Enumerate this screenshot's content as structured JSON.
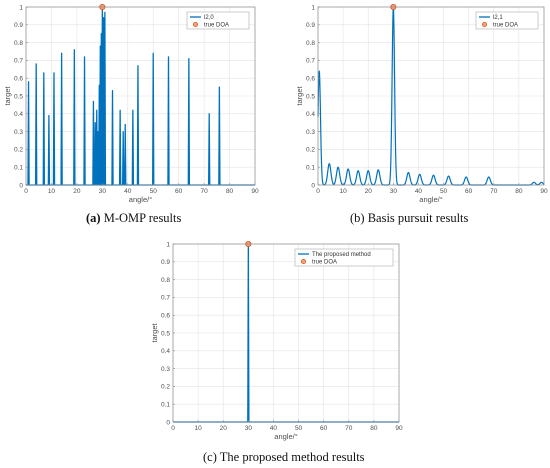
{
  "colors": {
    "series": "#0072bd",
    "marker_edge": "#d95319",
    "marker_fill": "#f3a27a",
    "grid": "#e3e3e3",
    "axis": "#8a8a8a"
  },
  "captions": [
    {
      "tag": "(a)",
      "text": " M-OMP results"
    },
    {
      "tag": "(b)",
      "text": " Basis pursuit results"
    },
    {
      "tag": "(c)",
      "text": " The proposed method results"
    }
  ],
  "chart_data": [
    {
      "type": "line",
      "xlabel": "angle/°",
      "ylabel": "target",
      "xlim": [
        0,
        90
      ],
      "ylim": [
        0,
        1
      ],
      "xticks": [
        0,
        10,
        20,
        30,
        40,
        50,
        60,
        70,
        80,
        90
      ],
      "yticks": [
        0,
        0.1,
        0.2,
        0.3,
        0.4,
        0.5,
        0.6,
        0.7,
        0.8,
        0.9,
        1
      ],
      "grid": true,
      "legend_position": "top-right",
      "legend": [
        "l2,0",
        "true DOA"
      ],
      "true_doa": {
        "x": 30,
        "y": 1
      },
      "series": [
        {
          "name": "l2,0",
          "peaks": [
            {
              "x": 1,
              "y": 0.58
            },
            {
              "x": 4,
              "y": 0.68
            },
            {
              "x": 7,
              "y": 0.63
            },
            {
              "x": 9,
              "y": 0.39
            },
            {
              "x": 11,
              "y": 0.63
            },
            {
              "x": 14,
              "y": 0.74
            },
            {
              "x": 19,
              "y": 0.76
            },
            {
              "x": 23,
              "y": 0.72
            },
            {
              "x": 26.5,
              "y": 0.47
            },
            {
              "x": 27.2,
              "y": 0.35
            },
            {
              "x": 27.8,
              "y": 0.42
            },
            {
              "x": 28.3,
              "y": 0.3
            },
            {
              "x": 28.8,
              "y": 0.56
            },
            {
              "x": 29.2,
              "y": 0.78
            },
            {
              "x": 29.6,
              "y": 0.85
            },
            {
              "x": 30,
              "y": 1
            },
            {
              "x": 30.5,
              "y": 0.94
            },
            {
              "x": 31,
              "y": 0.97
            },
            {
              "x": 34,
              "y": 0.53
            },
            {
              "x": 37,
              "y": 0.42
            },
            {
              "x": 38.2,
              "y": 0.3
            },
            {
              "x": 39,
              "y": 0.34
            },
            {
              "x": 42,
              "y": 0.42
            },
            {
              "x": 44,
              "y": 0.67
            },
            {
              "x": 50,
              "y": 0.74
            },
            {
              "x": 56,
              "y": 0.72
            },
            {
              "x": 64,
              "y": 0.71
            },
            {
              "x": 72,
              "y": 0.4
            },
            {
              "x": 76,
              "y": 0.55
            }
          ]
        }
      ]
    },
    {
      "type": "line",
      "xlabel": "angle/°",
      "ylabel": "target",
      "xlim": [
        0,
        90
      ],
      "ylim": [
        0,
        1
      ],
      "xticks": [
        0,
        10,
        20,
        30,
        40,
        50,
        60,
        70,
        80,
        90
      ],
      "yticks": [
        0,
        0.1,
        0.2,
        0.3,
        0.4,
        0.5,
        0.6,
        0.7,
        0.8,
        0.9,
        1
      ],
      "grid": true,
      "legend_position": "top-right",
      "legend": [
        "l2,1",
        "true DOA"
      ],
      "true_doa": {
        "x": 30,
        "y": 1
      },
      "series": [
        {
          "name": "l2,1",
          "peaks": [
            {
              "x": 0.5,
              "y": 0.64
            },
            {
              "x": 4.5,
              "y": 0.12
            },
            {
              "x": 8,
              "y": 0.1
            },
            {
              "x": 12,
              "y": 0.09
            },
            {
              "x": 16,
              "y": 0.08
            },
            {
              "x": 20,
              "y": 0.08
            },
            {
              "x": 24,
              "y": 0.085
            },
            {
              "x": 30,
              "y": 1
            },
            {
              "x": 36,
              "y": 0.07
            },
            {
              "x": 40.5,
              "y": 0.06
            },
            {
              "x": 46,
              "y": 0.055
            },
            {
              "x": 52,
              "y": 0.05
            },
            {
              "x": 59,
              "y": 0.045
            },
            {
              "x": 68,
              "y": 0.045
            },
            {
              "x": 86,
              "y": 0.015
            },
            {
              "x": 89,
              "y": 0.015
            }
          ]
        }
      ]
    },
    {
      "type": "line",
      "xlabel": "angle/°",
      "ylabel": "target",
      "xlim": [
        0,
        90
      ],
      "ylim": [
        0,
        1
      ],
      "xticks": [
        0,
        10,
        20,
        30,
        40,
        50,
        60,
        70,
        80,
        90
      ],
      "yticks": [
        0,
        0.1,
        0.2,
        0.3,
        0.4,
        0.5,
        0.6,
        0.7,
        0.8,
        0.9,
        1
      ],
      "grid": true,
      "legend_position": "top-right",
      "legend": [
        "The proposed method",
        "true DOA"
      ],
      "true_doa": {
        "x": 30,
        "y": 1
      },
      "series": [
        {
          "name": "The proposed method",
          "peaks": [
            {
              "x": 30,
              "y": 1
            }
          ]
        }
      ]
    }
  ]
}
